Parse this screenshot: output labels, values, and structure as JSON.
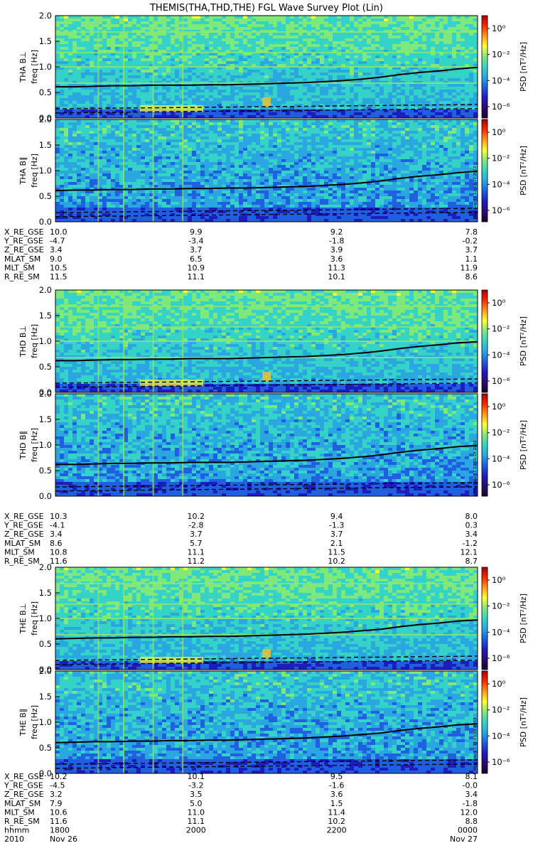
{
  "title": "THEMIS(THA,THD,THE) FGL Wave Survey Plot (Lin)",
  "colors": {
    "background": "#2f9fd0",
    "trace": "#000000",
    "frame": "#000000",
    "colormap": [
      "#1a0033",
      "#2a0d6b",
      "#1d1dbf",
      "#1f5fe0",
      "#2aa7e0",
      "#35d2c8",
      "#7fe87a",
      "#ffff33",
      "#ff9a1a",
      "#ff2a00",
      "#a80000"
    ]
  },
  "colorbar": {
    "label": "PSD [nT²/Hz]",
    "ticks": [
      "10⁰",
      "10⁻²",
      "10⁻⁴",
      "10⁻⁶"
    ]
  },
  "chart_data": [
    {
      "type": "heatmap",
      "ylabel": "THA B⊥  freq [Hz]",
      "ylabel_probe": "THA B⊥",
      "ylabel_unit": "freq [Hz]",
      "ylim": [
        0,
        2.0
      ],
      "yticks": [
        "0.0",
        "0.5",
        "1.0",
        "1.5",
        "2.0"
      ],
      "trace_hz": [
        0.61,
        0.61,
        0.62,
        0.63,
        0.63,
        0.64,
        0.64,
        0.64,
        0.65,
        0.65,
        0.66,
        0.67,
        0.68,
        0.69,
        0.71,
        0.73,
        0.76,
        0.8,
        0.85,
        0.89,
        0.92,
        0.96,
        0.99
      ],
      "stamp": ""
    },
    {
      "type": "heatmap",
      "ylabel": "THA B∥  freq [Hz]",
      "ylabel_probe": "THA B∥",
      "ylabel_unit": "freq [Hz]",
      "ylim": [
        0,
        2.0
      ],
      "yticks": [
        "0.0",
        "0.5",
        "1.0",
        "1.5",
        "2.0"
      ],
      "trace_hz": [
        0.61,
        0.62,
        0.62,
        0.63,
        0.63,
        0.64,
        0.64,
        0.65,
        0.65,
        0.66,
        0.66,
        0.67,
        0.68,
        0.69,
        0.71,
        0.73,
        0.76,
        0.8,
        0.85,
        0.89,
        0.92,
        0.96,
        0.99
      ],
      "stamp": "Mon Sep 17 12:01:27 2012"
    },
    {
      "type": "heatmap",
      "ylabel": "THD B⊥  freq [Hz]",
      "ylabel_probe": "THD B⊥",
      "ylabel_unit": "freq [Hz]",
      "ylim": [
        0,
        2.0
      ],
      "yticks": [
        "0.0",
        "0.5",
        "1.0",
        "1.5",
        "2.0"
      ],
      "trace_hz": [
        0.62,
        0.62,
        0.63,
        0.64,
        0.64,
        0.65,
        0.65,
        0.66,
        0.66,
        0.66,
        0.67,
        0.68,
        0.69,
        0.7,
        0.72,
        0.74,
        0.77,
        0.81,
        0.86,
        0.9,
        0.93,
        0.97,
        0.99
      ],
      "stamp": ""
    },
    {
      "type": "heatmap",
      "ylabel": "THD B∥  freq [Hz]",
      "ylabel_probe": "THD B∥",
      "ylabel_unit": "freq [Hz]",
      "ylim": [
        0,
        2.0
      ],
      "yticks": [
        "0.0",
        "0.5",
        "1.0",
        "1.5",
        "2.0"
      ],
      "trace_hz": [
        0.62,
        0.62,
        0.63,
        0.64,
        0.64,
        0.65,
        0.65,
        0.66,
        0.66,
        0.66,
        0.67,
        0.68,
        0.69,
        0.7,
        0.72,
        0.74,
        0.77,
        0.81,
        0.86,
        0.9,
        0.93,
        0.97,
        0.99
      ],
      "stamp": "Mon Sep 17 12:01:28 2012"
    },
    {
      "type": "heatmap",
      "ylabel": "THE B⊥  freq [Hz]",
      "ylabel_probe": "THE B⊥",
      "ylabel_unit": "freq [Hz]",
      "ylim": [
        0,
        2.0
      ],
      "yticks": [
        "0.0",
        "0.5",
        "1.0",
        "1.5",
        "2.0"
      ],
      "trace_hz": [
        0.6,
        0.61,
        0.62,
        0.62,
        0.63,
        0.63,
        0.64,
        0.64,
        0.65,
        0.65,
        0.66,
        0.67,
        0.68,
        0.69,
        0.71,
        0.73,
        0.76,
        0.79,
        0.84,
        0.88,
        0.91,
        0.95,
        0.97
      ],
      "stamp": ""
    },
    {
      "type": "heatmap",
      "ylabel": "THE B∥  freq [Hz]",
      "ylabel_probe": "THE B∥",
      "ylabel_unit": "freq [Hz]",
      "ylim": [
        0,
        2.0
      ],
      "yticks": [
        "0.0",
        "0.5",
        "1.0",
        "1.5",
        "2.0"
      ],
      "trace_hz": [
        0.6,
        0.61,
        0.62,
        0.62,
        0.63,
        0.63,
        0.64,
        0.64,
        0.65,
        0.65,
        0.66,
        0.67,
        0.68,
        0.69,
        0.71,
        0.73,
        0.76,
        0.79,
        0.84,
        0.88,
        0.91,
        0.95,
        0.97
      ],
      "stamp": "Mon Sep 17 12:01:28 2012"
    }
  ],
  "ephemeris": [
    {
      "rows": [
        {
          "label": "X_RE_GSE",
          "values": [
            "10.0",
            "9.9",
            "9.2",
            "7.8"
          ]
        },
        {
          "label": "Y_RE_GSE",
          "values": [
            "-4.7",
            "-3.4",
            "-1.8",
            "-0.2"
          ]
        },
        {
          "label": "Z_RE_GSE",
          "values": [
            "3.4",
            "3.7",
            "3.9",
            "3.7"
          ]
        },
        {
          "label": "MLAT_SM",
          "values": [
            "9.0",
            "6.5",
            "3.6",
            "1.1"
          ]
        },
        {
          "label": "MLT_SM",
          "values": [
            "10.5",
            "10.9",
            "11.3",
            "11.9"
          ]
        },
        {
          "label": "R_RE_SM",
          "values": [
            "11.5",
            "11.1",
            "10.1",
            "8.6"
          ]
        }
      ]
    },
    {
      "rows": [
        {
          "label": "X_RE_GSE",
          "values": [
            "10.3",
            "10.2",
            "9.4",
            "8.0"
          ]
        },
        {
          "label": "Y_RE_GSE",
          "values": [
            "-4.1",
            "-2.8",
            "-1.3",
            "0.3"
          ]
        },
        {
          "label": "Z_RE_GSE",
          "values": [
            "3.4",
            "3.7",
            "3.7",
            "3.4"
          ]
        },
        {
          "label": "MLAT_SM",
          "values": [
            "8.6",
            "5.7",
            "2.1",
            "-1.2"
          ]
        },
        {
          "label": "MLT_SM",
          "values": [
            "10.8",
            "11.1",
            "11.5",
            "12.1"
          ]
        },
        {
          "label": "R_RE_SM",
          "values": [
            "11.6",
            "11.2",
            "10.2",
            "8.7"
          ]
        }
      ]
    },
    {
      "rows": [
        {
          "label": "X_RE_GSE",
          "values": [
            "10.2",
            "10.1",
            "9.5",
            "8.1"
          ]
        },
        {
          "label": "Y_RE_GSE",
          "values": [
            "-4.5",
            "-3.2",
            "-1.6",
            "-0.0"
          ]
        },
        {
          "label": "Z_RE_GSE",
          "values": [
            "3.2",
            "3.5",
            "3.6",
            "3.4"
          ]
        },
        {
          "label": "MLAT_SM",
          "values": [
            "7.9",
            "5.0",
            "1.5",
            "-1.8"
          ]
        },
        {
          "label": "MLT_SM",
          "values": [
            "10.6",
            "11.0",
            "11.4",
            "12.0"
          ]
        },
        {
          "label": "R_RE_SM",
          "values": [
            "11.6",
            "11.1",
            "10.2",
            "8.8"
          ]
        },
        {
          "label": "hhmm",
          "values": [
            "1800",
            "2000",
            "2200",
            "0000"
          ]
        }
      ],
      "date_row": {
        "label": "2010",
        "values": [
          "Nov 26",
          "",
          "",
          "Nov 27"
        ]
      }
    }
  ]
}
